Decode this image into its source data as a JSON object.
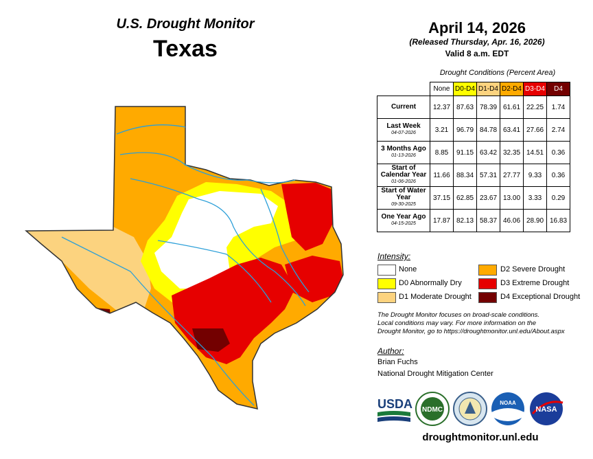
{
  "header": {
    "title": "U.S. Drought Monitor",
    "state": "Texas"
  },
  "date": {
    "main": "April 14, 2026",
    "released": "(Released Thursday, Apr. 16, 2026)",
    "valid": "Valid 8 a.m. EDT"
  },
  "table": {
    "caption": "Drought Conditions (Percent Area)",
    "columns": [
      "None",
      "D0-D4",
      "D1-D4",
      "D2-D4",
      "D3-D4",
      "D4"
    ],
    "rows": [
      {
        "label": "Current",
        "date": "",
        "values": [
          "12.37",
          "87.63",
          "78.39",
          "61.61",
          "22.25",
          "1.74"
        ]
      },
      {
        "label": "Last Week",
        "date": "04-07-2026",
        "values": [
          "3.21",
          "96.79",
          "84.78",
          "63.41",
          "27.66",
          "2.74"
        ]
      },
      {
        "label": "3 Months Ago",
        "date": "01-13-2026",
        "values": [
          "8.85",
          "91.15",
          "63.42",
          "32.35",
          "14.51",
          "0.36"
        ]
      },
      {
        "label": "Start of Calendar Year",
        "date": "01-06-2026",
        "values": [
          "11.66",
          "88.34",
          "57.31",
          "27.77",
          "9.33",
          "0.36"
        ]
      },
      {
        "label": "Start of Water Year",
        "date": "09-30-2025",
        "values": [
          "37.15",
          "62.85",
          "23.67",
          "13.00",
          "3.33",
          "0.29"
        ]
      },
      {
        "label": "One Year Ago",
        "date": "04-15-2025",
        "values": [
          "17.87",
          "82.13",
          "58.37",
          "46.06",
          "28.90",
          "16.83"
        ]
      }
    ]
  },
  "legend": {
    "title": "Intensity:",
    "items": [
      {
        "label": "None",
        "color": "#ffffff"
      },
      {
        "label": "D0 Abnormally Dry",
        "color": "#ffff00"
      },
      {
        "label": "D1 Moderate Drought",
        "color": "#fcd37f"
      },
      {
        "label": "D2 Severe Drought",
        "color": "#ffaa00"
      },
      {
        "label": "D3 Extreme Drought",
        "color": "#e60000"
      },
      {
        "label": "D4 Exceptional Drought",
        "color": "#730000"
      }
    ]
  },
  "note": {
    "line1": "The Drought Monitor focuses on broad-scale conditions.",
    "line2": "Local conditions may vary. For more information on the",
    "line3": "Drought Monitor, go to https://droughtmonitor.unl.edu/About.aspx"
  },
  "author": {
    "heading": "Author:",
    "name": "Brian Fuchs",
    "org": "National Drought Mitigation Center"
  },
  "logos": {
    "usda": "USDA",
    "ndmc": "NDMC",
    "noaa": "NOAA",
    "nasa": "NASA"
  },
  "footer": {
    "url": "droughtmonitor.unl.edu"
  }
}
